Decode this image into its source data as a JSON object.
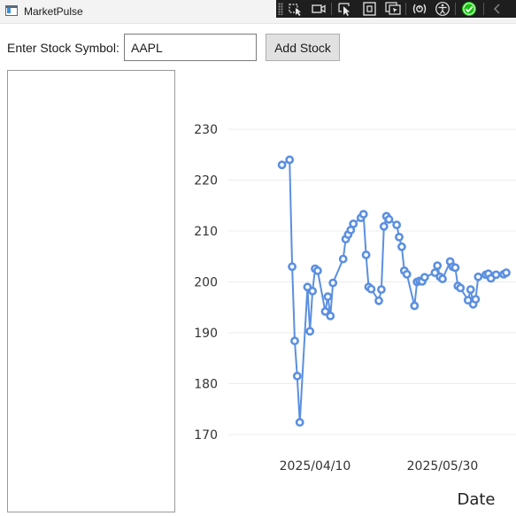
{
  "window": {
    "title": "MarketPulse"
  },
  "debug_toolbar": {
    "icons": [
      "select-element-icon",
      "record-video-icon",
      "pointer-select-icon",
      "layout-adorner-icon",
      "track-focus-icon",
      "binding-failures-icon",
      "accessibility-icon",
      "check-circle-icon",
      "collapse-chevron-icon"
    ],
    "accent_color": "#16c60c"
  },
  "input_row": {
    "label": "Enter Stock Symbol:",
    "symbol_value": "AAPL",
    "add_button_label": "Add Stock"
  },
  "stock_list": {
    "items": []
  },
  "chart_data": {
    "type": "line",
    "xlabel": "Date",
    "ylabel": "",
    "y_ticks": [
      170,
      180,
      190,
      200,
      210,
      220,
      230
    ],
    "ylim": [
      170,
      230
    ],
    "x_ticks": [
      "2025/04/10",
      "2025/05/30"
    ],
    "line_color": "#5b8fe0",
    "grid": true,
    "series": [
      {
        "name": "",
        "x": [
          "2025/03/28",
          "2025/03/31",
          "2025/04/01",
          "2025/04/02",
          "2025/04/03",
          "2025/04/04",
          "2025/04/07",
          "2025/04/08",
          "2025/04/09",
          "2025/04/10",
          "2025/04/11",
          "2025/04/14",
          "2025/04/15",
          "2025/04/16",
          "2025/04/17",
          "2025/04/21",
          "2025/04/22",
          "2025/04/23",
          "2025/04/24",
          "2025/04/25",
          "2025/04/28",
          "2025/04/29",
          "2025/04/30",
          "2025/05/01",
          "2025/05/02",
          "2025/05/05",
          "2025/05/06",
          "2025/05/07",
          "2025/05/08",
          "2025/05/09",
          "2025/05/12",
          "2025/05/13",
          "2025/05/14",
          "2025/05/15",
          "2025/05/16",
          "2025/05/19",
          "2025/05/20",
          "2025/05/21",
          "2025/05/22",
          "2025/05/23",
          "2025/05/27",
          "2025/05/28",
          "2025/05/29",
          "2025/05/30",
          "2025/06/02",
          "2025/06/03",
          "2025/06/04",
          "2025/06/05",
          "2025/06/06",
          "2025/06/09",
          "2025/06/10",
          "2025/06/11",
          "2025/06/12",
          "2025/06/13",
          "2025/06/16",
          "2025/06/17",
          "2025/06/18",
          "2025/06/20",
          "2025/06/23",
          "2025/06/24"
        ],
        "y": [
          223.0,
          224.0,
          203.0,
          188.4,
          181.5,
          172.4,
          199.0,
          190.3,
          198.2,
          202.6,
          202.2,
          194.2,
          197.1,
          193.3,
          199.8,
          204.5,
          208.4,
          209.3,
          210.2,
          211.4,
          212.6,
          213.3,
          205.3,
          199.0,
          198.6,
          196.3,
          198.5,
          210.9,
          212.9,
          212.3,
          211.2,
          208.8,
          206.9,
          202.2,
          201.5,
          195.3,
          200.0,
          200.2,
          200.1,
          200.9,
          201.8,
          203.2,
          201.0,
          200.6,
          204.0,
          203.0,
          202.8,
          199.2,
          198.8,
          196.4,
          198.5,
          195.6,
          196.6,
          201.0,
          201.4,
          201.6,
          200.7,
          201.4,
          201.5,
          201.8
        ]
      }
    ]
  }
}
